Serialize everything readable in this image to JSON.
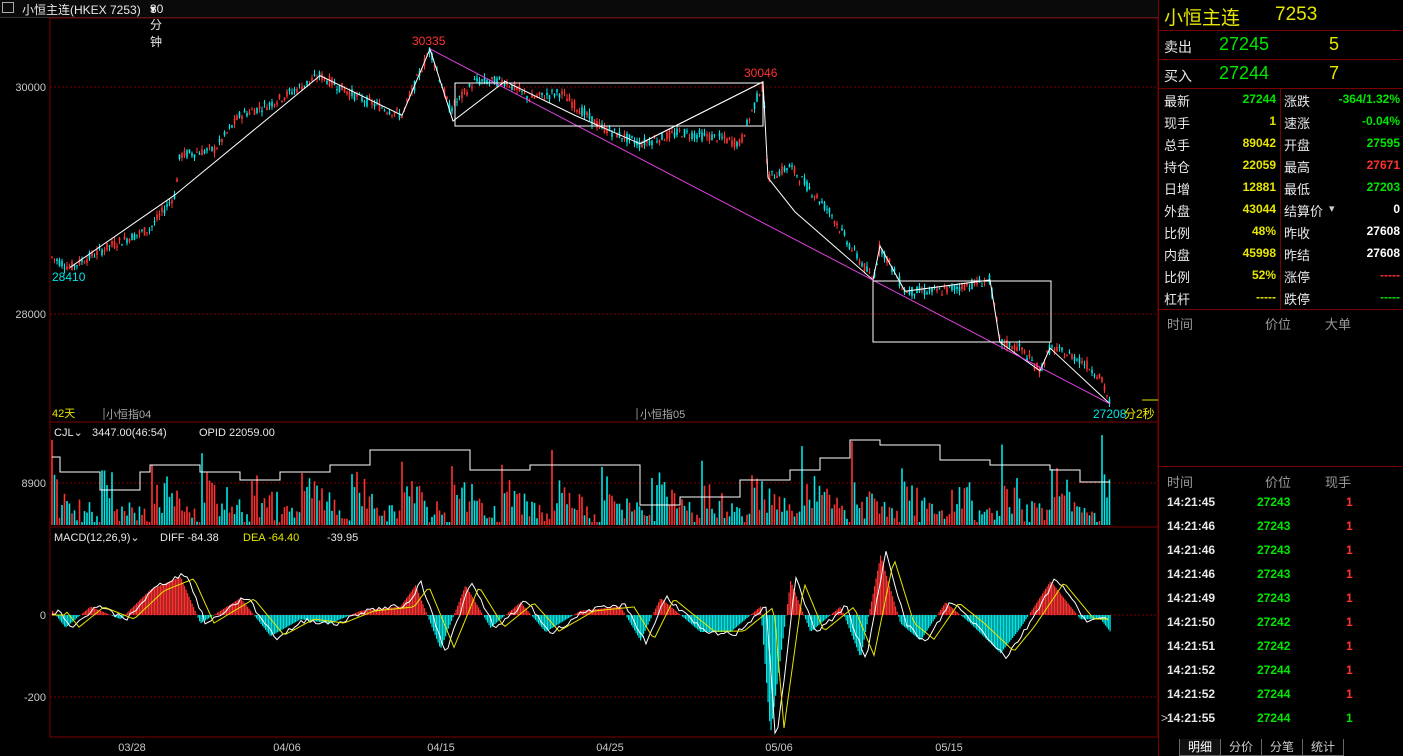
{
  "header": {
    "title": "小恒主连(HKEX 7253)",
    "period": "30分钟",
    "period_arrow": "▾"
  },
  "main_chart": {
    "y_ticks": [
      "30000",
      "28000"
    ],
    "x_ticks": [
      "03/28",
      "04/06",
      "04/15",
      "04/25",
      "05/06",
      "05/15"
    ],
    "annotations": {
      "low_start": "28410",
      "high1": "30335",
      "high2": "30046",
      "current_price": "27208",
      "countdown": "分2秒"
    },
    "days_label": "42天",
    "contract_labels": [
      "小恒指04",
      "小恒指05"
    ]
  },
  "volume_panel": {
    "name": "CJL",
    "value": "3447.00(46:54)",
    "opid": "OPID 22059.00",
    "y_tick": "8900"
  },
  "macd_panel": {
    "name": "MACD(12,26,9)",
    "diff": "DIFF -84.38",
    "dea": "DEA -64.40",
    "macd": "-39.95",
    "y_ticks": [
      "0",
      "-200"
    ]
  },
  "colors": {
    "up": "#ff3232",
    "down": "#00e5e5",
    "green": "#00e600",
    "yellow": "#e6e600",
    "border": "#7a0000",
    "trend": "#e040e0"
  },
  "quote": {
    "title": "小恒主连",
    "code": "7253",
    "sell": {
      "label": "卖出",
      "price": "27245",
      "qty": "5"
    },
    "buy": {
      "label": "买入",
      "price": "27244",
      "qty": "7"
    },
    "left": [
      {
        "label": "最新",
        "value": "27244",
        "color": "#00e600"
      },
      {
        "label": "现手",
        "value": "1",
        "color": "#e6e600"
      },
      {
        "label": "总手",
        "value": "89042",
        "color": "#e6e600"
      },
      {
        "label": "持仓",
        "value": "22059",
        "color": "#e6e600"
      },
      {
        "label": "日增",
        "value": "12881",
        "color": "#e6e600"
      },
      {
        "label": "外盘",
        "value": "43044",
        "color": "#e6e600"
      },
      {
        "label": "比例",
        "value": "48%",
        "color": "#e6e600"
      },
      {
        "label": "内盘",
        "value": "45998",
        "color": "#e6e600"
      },
      {
        "label": "比例",
        "value": "52%",
        "color": "#e6e600"
      },
      {
        "label": "杠杆",
        "value": "-----",
        "color": "#e6e600"
      }
    ],
    "right": [
      {
        "label": "涨跌",
        "value": "-364/1.32%",
        "color": "#00e600"
      },
      {
        "label": "速涨",
        "value": "-0.04%",
        "color": "#00e600"
      },
      {
        "label": "开盘",
        "value": "27595",
        "color": "#00e600"
      },
      {
        "label": "最高",
        "value": "27671",
        "color": "#ff3232"
      },
      {
        "label": "最低",
        "value": "27203",
        "color": "#00e600"
      },
      {
        "label": "结算价",
        "value": "0",
        "color": "#ffffff"
      },
      {
        "label": "昨收",
        "value": "27608",
        "color": "#ffffff"
      },
      {
        "label": "昨结",
        "value": "27608",
        "color": "#ffffff"
      },
      {
        "label": "涨停",
        "value": "-----",
        "color": "#ff3232"
      },
      {
        "label": "跌停",
        "value": "-----",
        "color": "#00e600"
      }
    ],
    "settle_arrow": "▾"
  },
  "big_orders": {
    "headers": [
      "时间",
      "价位",
      "大单"
    ]
  },
  "ticks": {
    "headers": [
      "时间",
      "价位",
      "现手"
    ],
    "rows": [
      {
        "time": "14:21:45",
        "price": "27243",
        "qty": "1"
      },
      {
        "time": "14:21:46",
        "price": "27243",
        "qty": "1"
      },
      {
        "time": "14:21:46",
        "price": "27243",
        "qty": "1"
      },
      {
        "time": "14:21:46",
        "price": "27243",
        "qty": "1"
      },
      {
        "time": "14:21:49",
        "price": "27243",
        "qty": "1"
      },
      {
        "time": "14:21:50",
        "price": "27242",
        "qty": "1"
      },
      {
        "time": "14:21:51",
        "price": "27242",
        "qty": "1"
      },
      {
        "time": "14:21:52",
        "price": "27244",
        "qty": "1"
      },
      {
        "time": "14:21:52",
        "price": "27244",
        "qty": "1"
      },
      {
        "time": "14:21:55",
        "price": "27244",
        "qty": "1"
      }
    ],
    "last_marker": ">"
  },
  "tabs": [
    "明细",
    "分价",
    "分笔",
    "统计"
  ]
}
